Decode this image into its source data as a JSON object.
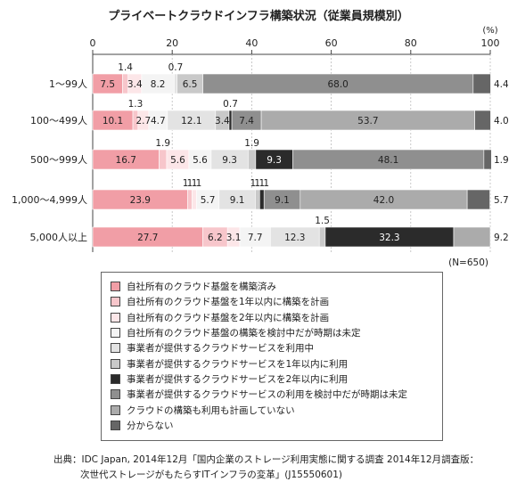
{
  "chart_data": {
    "type": "bar",
    "orientation": "horizontal",
    "stacked": true,
    "title": "プライベートクラウドインフラ構築状況（従業員規模別）",
    "unit_label": "(%)",
    "xlim": [
      0,
      100
    ],
    "x_ticks": [
      "0",
      "20",
      "40",
      "60",
      "80",
      "100"
    ],
    "sample_note": "(N=650)",
    "categories": [
      "1～99人",
      "100～499人",
      "500～999人",
      "1,000～4,999人",
      "5,000人以上"
    ],
    "series": [
      {
        "name": "自社所有のクラウド基盤を構築済み",
        "color": "#f19ea6",
        "values": [
          7.5,
          10.1,
          16.7,
          23.9,
          27.7
        ]
      },
      {
        "name": "自社所有のクラウド基盤を1年以内に構築を計画",
        "color": "#f7c6cb",
        "values": [
          1.4,
          1.3,
          1.9,
          1.1,
          6.2
        ]
      },
      {
        "name": "自社所有のクラウド基盤を2年以内に構築を計画",
        "color": "#fce6e8",
        "values": [
          3.4,
          2.7,
          5.6,
          1.1,
          3.1
        ]
      },
      {
        "name": "自社所有のクラウド基盤の構築を検討中だが時期は未定",
        "color": "#f4f4f4",
        "values": [
          8.2,
          4.7,
          5.6,
          5.7,
          7.7
        ]
      },
      {
        "name": "事業者が提供するクラウドサービスを利用中",
        "color": "#e3e3e3",
        "values": [
          0.7,
          12.1,
          9.3,
          9.1,
          12.3
        ]
      },
      {
        "name": "事業者が提供するクラウドサービスを1年以内に利用",
        "color": "#c9c9c9",
        "values": [
          6.5,
          3.4,
          1.9,
          1.1,
          1.5
        ]
      },
      {
        "name": "事業者が提供するクラウドサービスを2年以内に利用",
        "color": "#2b2b2b",
        "values": [
          0.0,
          0.7,
          9.3,
          1.1,
          32.3
        ]
      },
      {
        "name": "事業者が提供するクラウドサービスの利用を検討中だが時期は未定",
        "color": "#8f8f8f",
        "values": [
          68.0,
          7.4,
          48.1,
          9.1,
          0.0
        ]
      },
      {
        "name": "クラウドの構築も利用も計画していない",
        "color": "#ababab",
        "values": [
          0.0,
          53.7,
          0.0,
          42.0,
          9.2
        ]
      },
      {
        "name": "分からない",
        "color": "#666666",
        "values": [
          4.4,
          4.0,
          1.9,
          5.7,
          0.0
        ]
      }
    ],
    "bar_labels": [
      {
        "inside": [
          "7.5",
          "3.4",
          "8.2",
          "6.5",
          "68.0"
        ],
        "above": [
          "1.4",
          "0.7"
        ],
        "right": "4.4"
      },
      {
        "inside": [
          "10.1",
          "2.7",
          "4.7",
          "12.1",
          "3.4",
          "7.4",
          "53.7"
        ],
        "above": [
          "1.3",
          "0.7"
        ],
        "right": "4.0"
      },
      {
        "inside": [
          "16.7",
          "5.6",
          "5.6",
          "9.3",
          "9.3",
          "48.1"
        ],
        "above": [
          "1.9",
          "1.9"
        ],
        "right": "1.9"
      },
      {
        "inside": [
          "23.9",
          "5.7",
          "9.1",
          "9.1",
          "42.0"
        ],
        "above": [
          "1.1",
          "1.1",
          "1.1",
          "1.1"
        ],
        "right": "5.7"
      },
      {
        "inside": [
          "27.7",
          "6.2",
          "3.1",
          "7.7",
          "12.3",
          "32.3"
        ],
        "above": [
          "1.5"
        ],
        "right": "9.2"
      }
    ]
  },
  "legend": [
    {
      "label": "自社所有のクラウド基盤を構築済み",
      "color": "#f19ea6"
    },
    {
      "label": "自社所有のクラウド基盤を1年以内に構築を計画",
      "color": "#f7c6cb"
    },
    {
      "label": "自社所有のクラウド基盤を2年以内に構築を計画",
      "color": "#fce6e8"
    },
    {
      "label": "自社所有のクラウド基盤の構築を検討中だが時期は未定",
      "color": "#f4f4f4"
    },
    {
      "label": "事業者が提供するクラウドサービスを利用中",
      "color": "#e3e3e3"
    },
    {
      "label": "事業者が提供するクラウドサービスを1年以内に利用",
      "color": "#c9c9c9"
    },
    {
      "label": "事業者が提供するクラウドサービスを2年以内に利用",
      "color": "#2b2b2b"
    },
    {
      "label": "事業者が提供するクラウドサービスの利用を検討中だが時期は未定",
      "color": "#8f8f8f"
    },
    {
      "label": "クラウドの構築も利用も計画していない",
      "color": "#ababab"
    },
    {
      "label": "分からない",
      "color": "#666666"
    }
  ],
  "source": {
    "line1": "出典：IDC Japan, 2014年12月「国内企業のストレージ利用実態に関する調査 2014年12月調査版：",
    "line2": "次世代ストレージがもたらすITインフラの変革」(J15550601)"
  }
}
